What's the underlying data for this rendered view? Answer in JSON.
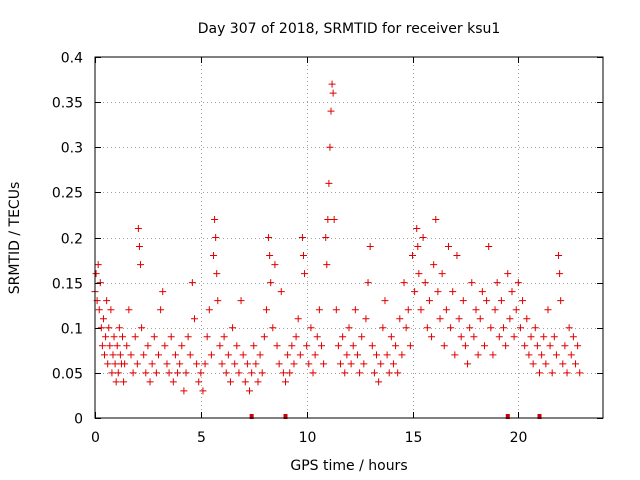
{
  "chart_data": {
    "type": "scatter",
    "title": "Day 307 of 2018, SRMTID for receiver ksu1",
    "xlabel": "GPS time / hours",
    "ylabel": "SRMTID / TECUs",
    "xlim": [
      0,
      24
    ],
    "ylim": [
      0,
      0.4
    ],
    "xticks": [
      0,
      5,
      10,
      15,
      20
    ],
    "yticks": [
      0,
      0.05,
      0.1,
      0.15,
      0.2,
      0.25,
      0.3,
      0.35,
      0.4
    ],
    "x_tick_labels": [
      "0",
      "5",
      "10",
      "15",
      "20"
    ],
    "y_tick_labels": [
      "0",
      "0.05",
      "0.1",
      "0.15",
      "0.2",
      "0.25",
      "0.3",
      "0.35",
      "0.4"
    ],
    "grid": true,
    "marker": "+",
    "color": "#e00000",
    "flag_color": "#cc0000",
    "flag_times": [
      7.4,
      9.0,
      19.5,
      21.0
    ],
    "series": [
      {
        "name": "SRMTID",
        "points": [
          [
            0.0,
            0.14
          ],
          [
            0.05,
            0.16
          ],
          [
            0.1,
            0.13
          ],
          [
            0.15,
            0.17
          ],
          [
            0.2,
            0.12
          ],
          [
            0.25,
            0.15
          ],
          [
            0.3,
            0.1
          ],
          [
            0.35,
            0.08
          ],
          [
            0.4,
            0.11
          ],
          [
            0.45,
            0.07
          ],
          [
            0.5,
            0.09
          ],
          [
            0.55,
            0.13
          ],
          [
            0.6,
            0.06
          ],
          [
            0.65,
            0.1
          ],
          [
            0.7,
            0.08
          ],
          [
            0.75,
            0.12
          ],
          [
            0.8,
            0.05
          ],
          [
            0.85,
            0.07
          ],
          [
            0.9,
            0.09
          ],
          [
            0.95,
            0.06
          ],
          [
            1.0,
            0.04
          ],
          [
            1.05,
            0.08
          ],
          [
            1.1,
            0.05
          ],
          [
            1.15,
            0.1
          ],
          [
            1.2,
            0.07
          ],
          [
            1.25,
            0.06
          ],
          [
            1.3,
            0.09
          ],
          [
            1.35,
            0.04
          ],
          [
            1.4,
            0.06
          ],
          [
            1.5,
            0.08
          ],
          [
            1.6,
            0.12
          ],
          [
            1.7,
            0.07
          ],
          [
            1.8,
            0.05
          ],
          [
            1.9,
            0.09
          ],
          [
            2.0,
            0.06
          ],
          [
            2.05,
            0.21
          ],
          [
            2.1,
            0.19
          ],
          [
            2.15,
            0.17
          ],
          [
            2.2,
            0.1
          ],
          [
            2.3,
            0.07
          ],
          [
            2.4,
            0.05
          ],
          [
            2.5,
            0.08
          ],
          [
            2.6,
            0.04
          ],
          [
            2.7,
            0.06
          ],
          [
            2.8,
            0.09
          ],
          [
            2.9,
            0.05
          ],
          [
            3.0,
            0.07
          ],
          [
            3.1,
            0.12
          ],
          [
            3.2,
            0.14
          ],
          [
            3.3,
            0.08
          ],
          [
            3.4,
            0.06
          ],
          [
            3.5,
            0.05
          ],
          [
            3.6,
            0.09
          ],
          [
            3.7,
            0.04
          ],
          [
            3.8,
            0.07
          ],
          [
            3.9,
            0.05
          ],
          [
            4.0,
            0.06
          ],
          [
            4.1,
            0.08
          ],
          [
            4.2,
            0.03
          ],
          [
            4.3,
            0.05
          ],
          [
            4.4,
            0.09
          ],
          [
            4.5,
            0.07
          ],
          [
            4.6,
            0.15
          ],
          [
            4.7,
            0.11
          ],
          [
            4.8,
            0.06
          ],
          [
            4.9,
            0.04
          ],
          [
            5.0,
            0.05
          ],
          [
            5.1,
            0.03
          ],
          [
            5.2,
            0.06
          ],
          [
            5.3,
            0.09
          ],
          [
            5.4,
            0.12
          ],
          [
            5.5,
            0.07
          ],
          [
            5.6,
            0.18
          ],
          [
            5.65,
            0.22
          ],
          [
            5.7,
            0.2
          ],
          [
            5.75,
            0.16
          ],
          [
            5.8,
            0.13
          ],
          [
            5.9,
            0.08
          ],
          [
            6.0,
            0.06
          ],
          [
            6.1,
            0.09
          ],
          [
            6.2,
            0.05
          ],
          [
            6.3,
            0.07
          ],
          [
            6.4,
            0.04
          ],
          [
            6.5,
            0.1
          ],
          [
            6.6,
            0.06
          ],
          [
            6.7,
            0.08
          ],
          [
            6.8,
            0.05
          ],
          [
            6.9,
            0.13
          ],
          [
            7.0,
            0.07
          ],
          [
            7.1,
            0.04
          ],
          [
            7.2,
            0.06
          ],
          [
            7.3,
            0.03
          ],
          [
            7.4,
            0.05
          ],
          [
            7.5,
            0.08
          ],
          [
            7.6,
            0.06
          ],
          [
            7.7,
            0.04
          ],
          [
            7.8,
            0.07
          ],
          [
            7.9,
            0.05
          ],
          [
            8.0,
            0.09
          ],
          [
            8.1,
            0.12
          ],
          [
            8.2,
            0.2
          ],
          [
            8.25,
            0.18
          ],
          [
            8.3,
            0.15
          ],
          [
            8.4,
            0.1
          ],
          [
            8.5,
            0.17
          ],
          [
            8.6,
            0.08
          ],
          [
            8.7,
            0.06
          ],
          [
            8.8,
            0.14
          ],
          [
            8.9,
            0.05
          ],
          [
            9.0,
            0.04
          ],
          [
            9.1,
            0.07
          ],
          [
            9.2,
            0.05
          ],
          [
            9.3,
            0.08
          ],
          [
            9.4,
            0.06
          ],
          [
            9.5,
            0.09
          ],
          [
            9.6,
            0.11
          ],
          [
            9.7,
            0.07
          ],
          [
            9.8,
            0.2
          ],
          [
            9.85,
            0.18
          ],
          [
            9.9,
            0.16
          ],
          [
            10.0,
            0.08
          ],
          [
            10.1,
            0.06
          ],
          [
            10.2,
            0.1
          ],
          [
            10.3,
            0.05
          ],
          [
            10.4,
            0.07
          ],
          [
            10.5,
            0.09
          ],
          [
            10.6,
            0.12
          ],
          [
            10.7,
            0.08
          ],
          [
            10.8,
            0.06
          ],
          [
            10.9,
            0.2
          ],
          [
            10.95,
            0.17
          ],
          [
            11.0,
            0.22
          ],
          [
            11.05,
            0.26
          ],
          [
            11.1,
            0.3
          ],
          [
            11.15,
            0.34
          ],
          [
            11.2,
            0.37
          ],
          [
            11.25,
            0.36
          ],
          [
            11.3,
            0.22
          ],
          [
            11.4,
            0.12
          ],
          [
            11.5,
            0.08
          ],
          [
            11.6,
            0.06
          ],
          [
            11.7,
            0.09
          ],
          [
            11.8,
            0.05
          ],
          [
            11.9,
            0.07
          ],
          [
            12.0,
            0.1
          ],
          [
            12.1,
            0.06
          ],
          [
            12.2,
            0.08
          ],
          [
            12.3,
            0.12
          ],
          [
            12.4,
            0.07
          ],
          [
            12.5,
            0.05
          ],
          [
            12.6,
            0.09
          ],
          [
            12.7,
            0.06
          ],
          [
            12.8,
            0.11
          ],
          [
            12.9,
            0.15
          ],
          [
            13.0,
            0.19
          ],
          [
            13.1,
            0.08
          ],
          [
            13.2,
            0.05
          ],
          [
            13.3,
            0.07
          ],
          [
            13.4,
            0.04
          ],
          [
            13.5,
            0.06
          ],
          [
            13.6,
            0.1
          ],
          [
            13.7,
            0.13
          ],
          [
            13.8,
            0.07
          ],
          [
            13.9,
            0.05
          ],
          [
            14.0,
            0.09
          ],
          [
            14.1,
            0.06
          ],
          [
            14.2,
            0.08
          ],
          [
            14.3,
            0.05
          ],
          [
            14.4,
            0.11
          ],
          [
            14.5,
            0.07
          ],
          [
            14.6,
            0.15
          ],
          [
            14.7,
            0.1
          ],
          [
            14.8,
            0.12
          ],
          [
            14.9,
            0.08
          ],
          [
            15.0,
            0.18
          ],
          [
            15.1,
            0.14
          ],
          [
            15.2,
            0.21
          ],
          [
            15.25,
            0.19
          ],
          [
            15.3,
            0.16
          ],
          [
            15.4,
            0.12
          ],
          [
            15.5,
            0.2
          ],
          [
            15.6,
            0.15
          ],
          [
            15.7,
            0.1
          ],
          [
            15.8,
            0.13
          ],
          [
            15.9,
            0.09
          ],
          [
            16.0,
            0.17
          ],
          [
            16.1,
            0.22
          ],
          [
            16.2,
            0.14
          ],
          [
            16.3,
            0.11
          ],
          [
            16.4,
            0.16
          ],
          [
            16.5,
            0.08
          ],
          [
            16.6,
            0.12
          ],
          [
            16.7,
            0.19
          ],
          [
            16.8,
            0.1
          ],
          [
            16.9,
            0.14
          ],
          [
            17.0,
            0.07
          ],
          [
            17.1,
            0.18
          ],
          [
            17.2,
            0.11
          ],
          [
            17.3,
            0.09
          ],
          [
            17.4,
            0.13
          ],
          [
            17.5,
            0.08
          ],
          [
            17.6,
            0.06
          ],
          [
            17.7,
            0.1
          ],
          [
            17.8,
            0.15
          ],
          [
            17.9,
            0.09
          ],
          [
            18.0,
            0.12
          ],
          [
            18.1,
            0.07
          ],
          [
            18.2,
            0.11
          ],
          [
            18.3,
            0.14
          ],
          [
            18.4,
            0.08
          ],
          [
            18.5,
            0.13
          ],
          [
            18.6,
            0.19
          ],
          [
            18.7,
            0.1
          ],
          [
            18.8,
            0.07
          ],
          [
            18.9,
            0.12
          ],
          [
            19.0,
            0.15
          ],
          [
            19.1,
            0.09
          ],
          [
            19.2,
            0.13
          ],
          [
            19.3,
            0.1
          ],
          [
            19.4,
            0.08
          ],
          [
            19.5,
            0.16
          ],
          [
            19.6,
            0.11
          ],
          [
            19.7,
            0.14
          ],
          [
            19.8,
            0.09
          ],
          [
            19.9,
            0.12
          ],
          [
            20.0,
            0.15
          ],
          [
            20.1,
            0.1
          ],
          [
            20.2,
            0.13
          ],
          [
            20.3,
            0.08
          ],
          [
            20.4,
            0.11
          ],
          [
            20.5,
            0.07
          ],
          [
            20.6,
            0.09
          ],
          [
            20.7,
            0.06
          ],
          [
            20.8,
            0.1
          ],
          [
            20.9,
            0.08
          ],
          [
            21.0,
            0.05
          ],
          [
            21.1,
            0.07
          ],
          [
            21.2,
            0.09
          ],
          [
            21.3,
            0.06
          ],
          [
            21.4,
            0.12
          ],
          [
            21.5,
            0.08
          ],
          [
            21.6,
            0.05
          ],
          [
            21.7,
            0.09
          ],
          [
            21.8,
            0.07
          ],
          [
            21.9,
            0.18
          ],
          [
            21.95,
            0.16
          ],
          [
            22.0,
            0.13
          ],
          [
            22.1,
            0.06
          ],
          [
            22.2,
            0.08
          ],
          [
            22.3,
            0.05
          ],
          [
            22.4,
            0.1
          ],
          [
            22.5,
            0.07
          ],
          [
            22.6,
            0.09
          ],
          [
            22.7,
            0.06
          ],
          [
            22.8,
            0.08
          ],
          [
            22.9,
            0.05
          ]
        ]
      }
    ]
  }
}
